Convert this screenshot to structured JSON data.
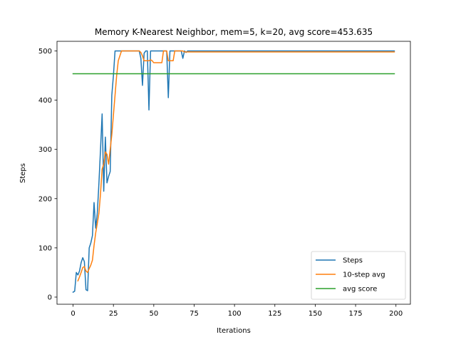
{
  "chart_data": {
    "type": "line",
    "title": "Memory K-Nearest Neighbor, mem=5, k=20, avg score=453.635",
    "xlabel": "Iterations",
    "ylabel": "Steps",
    "xlim": [
      -9.95,
      208.95
    ],
    "ylim": [
      -14.5,
      519.5
    ],
    "xticks": [
      0,
      25,
      50,
      75,
      100,
      125,
      150,
      175,
      200
    ],
    "yticks": [
      0,
      100,
      200,
      300,
      400,
      500
    ],
    "legend_position": "lower right",
    "grid": false,
    "series": [
      {
        "name": "Steps",
        "color": "#1f77b4",
        "x": [
          0,
          1,
          2,
          3,
          4,
          5,
          6,
          7,
          8,
          9,
          10,
          11,
          12,
          13,
          14,
          15,
          16,
          17,
          18,
          19,
          20,
          21,
          22,
          23,
          24,
          25,
          26,
          27,
          28,
          29,
          30,
          40,
          41,
          42,
          43,
          44,
          45,
          46,
          47,
          48,
          49,
          50,
          55,
          56,
          57,
          58,
          59,
          60,
          66,
          67,
          68,
          69,
          70,
          71,
          72,
          199
        ],
        "y": [
          10,
          12,
          50,
          45,
          53,
          70,
          80,
          72,
          15,
          13,
          100,
          110,
          125,
          192,
          140,
          170,
          230,
          300,
          372,
          215,
          325,
          232,
          245,
          255,
          410,
          450,
          500,
          500,
          500,
          500,
          500,
          500,
          500,
          485,
          430,
          495,
          500,
          500,
          380,
          500,
          500,
          500,
          500,
          500,
          500,
          500,
          405,
          500,
          500,
          500,
          485,
          500,
          497,
          500,
          500,
          500
        ]
      },
      {
        "name": "10-step avg",
        "color": "#ff7f0e",
        "x": [
          3,
          4,
          5,
          6,
          7,
          8,
          9,
          10,
          11,
          12,
          13,
          14,
          15,
          16,
          17,
          18,
          19,
          20,
          21,
          22,
          23,
          24,
          25,
          26,
          27,
          28,
          29,
          30,
          41,
          42,
          43,
          44,
          45,
          46,
          47,
          48,
          49,
          50,
          51,
          52,
          53,
          54,
          55,
          56,
          57,
          58,
          59,
          60,
          61,
          62,
          63,
          64,
          65,
          66,
          67,
          68,
          69,
          70,
          199
        ],
        "y": [
          33,
          41,
          50,
          60,
          62,
          53,
          50,
          58,
          65,
          75,
          105,
          130,
          150,
          170,
          210,
          260,
          270,
          295,
          290,
          270,
          300,
          330,
          370,
          410,
          450,
          480,
          490,
          500,
          500,
          497,
          490,
          480,
          480,
          480,
          480,
          482,
          480,
          476,
          476,
          476,
          476,
          476,
          476,
          500,
          500,
          500,
          480,
          480,
          480,
          480,
          500,
          500,
          500,
          500,
          500,
          500,
          498,
          498,
          498
        ]
      },
      {
        "name": "avg score",
        "color": "#2ca02c",
        "x": [
          0,
          199
        ],
        "y": [
          453.635,
          453.635
        ]
      }
    ]
  }
}
